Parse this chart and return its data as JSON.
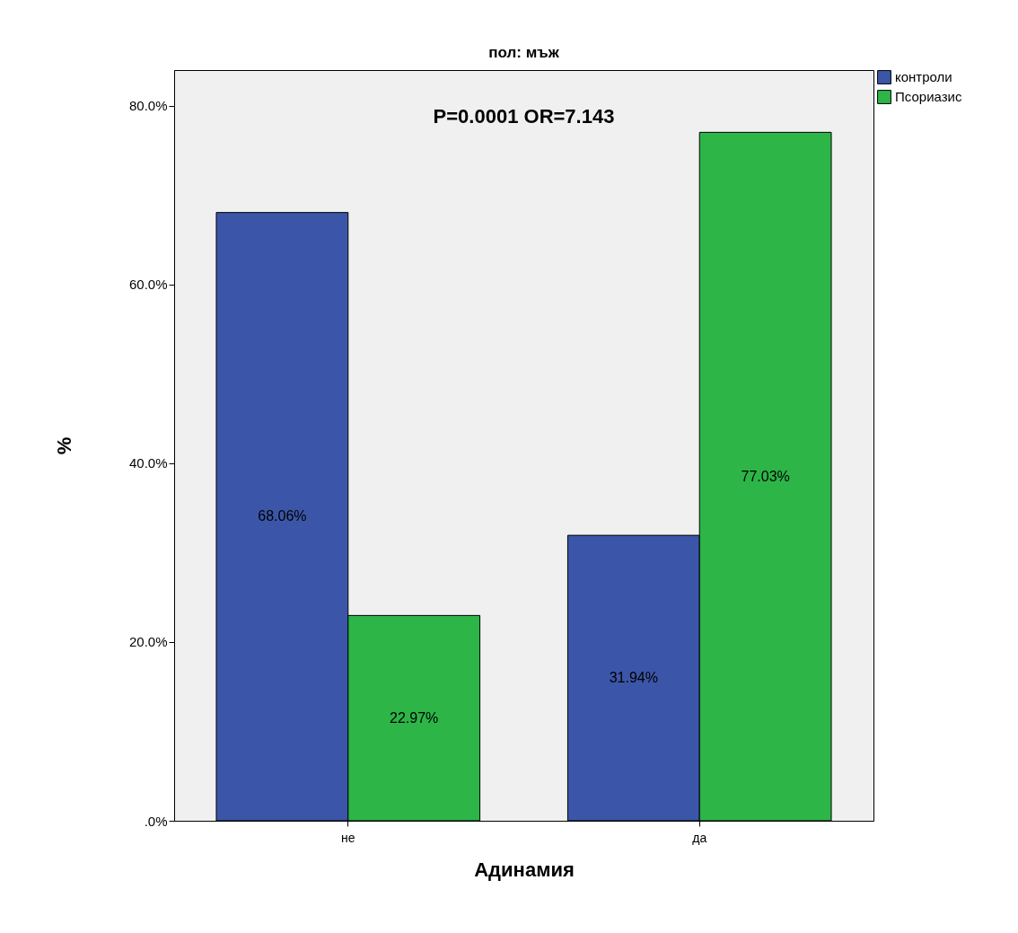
{
  "chart_data": {
    "type": "bar",
    "title": "пол: мъж",
    "xlabel": "Адинамия",
    "ylabel": "%",
    "categories": [
      "не",
      "да"
    ],
    "series": [
      {
        "name": "контроли",
        "color": "#3b56a8",
        "values": [
          68.06,
          31.94
        ],
        "value_labels": [
          "68.06%",
          "31.94%"
        ]
      },
      {
        "name": "Псориазис",
        "color": "#2db548",
        "values": [
          22.97,
          77.03
        ],
        "value_labels": [
          "22.97%",
          "77.03%"
        ]
      }
    ],
    "ylim": [
      0,
      84
    ],
    "yticks": [
      {
        "value": 0,
        "label": ".0%"
      },
      {
        "value": 20,
        "label": "20.0%"
      },
      {
        "value": 40,
        "label": "40.0%"
      },
      {
        "value": 60,
        "label": "60.0%"
      },
      {
        "value": 80,
        "label": "80.0%"
      }
    ],
    "annotations": [
      "P=0.0001 OR=7.143"
    ],
    "legend": "top right",
    "grid": false
  }
}
